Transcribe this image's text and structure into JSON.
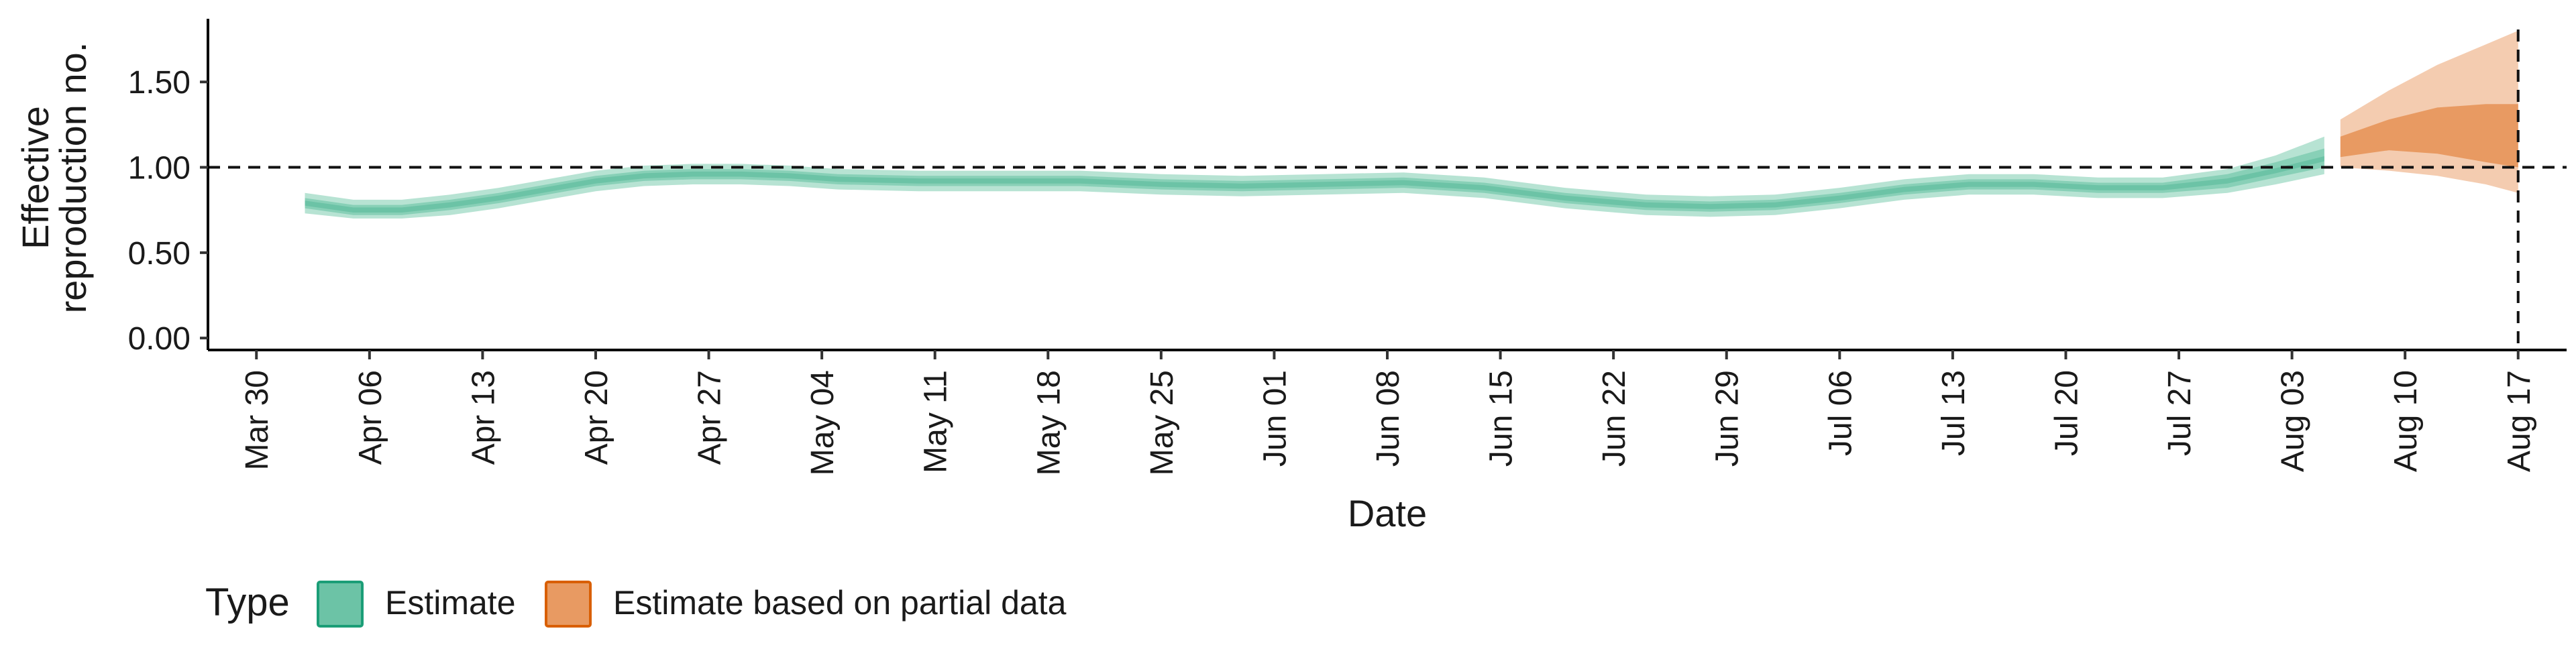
{
  "chart_data": {
    "type": "area",
    "title": "",
    "xlabel": "Date",
    "ylabel": [
      "Effective",
      "reproduction no."
    ],
    "x_domain": [
      "2020-03-27",
      "2020-08-20"
    ],
    "ylim": [
      -0.07,
      1.87
    ],
    "y_ticks": [
      {
        "value": 0.0,
        "label": "0.00"
      },
      {
        "value": 0.5,
        "label": "0.50"
      },
      {
        "value": 1.0,
        "label": "1.00"
      },
      {
        "value": 1.5,
        "label": "1.50"
      }
    ],
    "x_ticks": [
      {
        "date": "2020-03-30",
        "label": "Mar 30"
      },
      {
        "date": "2020-04-06",
        "label": "Apr 06"
      },
      {
        "date": "2020-04-13",
        "label": "Apr 13"
      },
      {
        "date": "2020-04-20",
        "label": "Apr 20"
      },
      {
        "date": "2020-04-27",
        "label": "Apr 27"
      },
      {
        "date": "2020-05-04",
        "label": "May 04"
      },
      {
        "date": "2020-05-11",
        "label": "May 11"
      },
      {
        "date": "2020-05-18",
        "label": "May 18"
      },
      {
        "date": "2020-05-25",
        "label": "May 25"
      },
      {
        "date": "2020-06-01",
        "label": "Jun 01"
      },
      {
        "date": "2020-06-08",
        "label": "Jun 08"
      },
      {
        "date": "2020-06-15",
        "label": "Jun 15"
      },
      {
        "date": "2020-06-22",
        "label": "Jun 22"
      },
      {
        "date": "2020-06-29",
        "label": "Jun 29"
      },
      {
        "date": "2020-07-06",
        "label": "Jul 06"
      },
      {
        "date": "2020-07-13",
        "label": "Jul 13"
      },
      {
        "date": "2020-07-20",
        "label": "Jul 20"
      },
      {
        "date": "2020-07-27",
        "label": "Jul 27"
      },
      {
        "date": "2020-08-03",
        "label": "Aug 03"
      },
      {
        "date": "2020-08-10",
        "label": "Aug 10"
      },
      {
        "date": "2020-08-17",
        "label": "Aug 17"
      }
    ],
    "reference_lines": {
      "horizontal_y": 1.0,
      "vertical_date": "2020-08-17"
    },
    "grid": false,
    "legend": {
      "position": "bottom-left",
      "title": "Type",
      "entries": [
        {
          "label": "Estimate",
          "fill": "#6cc3a6",
          "border": "#1b9e77"
        },
        {
          "label": "Estimate based on partial data",
          "fill": "#e89a62",
          "border": "#d95f02"
        }
      ]
    },
    "series": [
      {
        "name": "Estimate",
        "colors": {
          "outer": "#b7e3d3",
          "mid": "#88d0b7",
          "inner": "#6cc3a6"
        },
        "x": [
          "2020-04-02",
          "2020-04-05",
          "2020-04-08",
          "2020-04-11",
          "2020-04-14",
          "2020-04-17",
          "2020-04-20",
          "2020-04-23",
          "2020-04-26",
          "2020-04-29",
          "2020-05-02",
          "2020-05-05",
          "2020-05-10",
          "2020-05-15",
          "2020-05-20",
          "2020-05-25",
          "2020-05-30",
          "2020-06-04",
          "2020-06-09",
          "2020-06-14",
          "2020-06-19",
          "2020-06-24",
          "2020-06-28",
          "2020-07-02",
          "2020-07-06",
          "2020-07-10",
          "2020-07-14",
          "2020-07-18",
          "2020-07-22",
          "2020-07-26",
          "2020-07-30",
          "2020-08-02",
          "2020-08-05"
        ],
        "median": [
          0.79,
          0.75,
          0.75,
          0.78,
          0.82,
          0.87,
          0.92,
          0.95,
          0.96,
          0.96,
          0.95,
          0.93,
          0.92,
          0.92,
          0.92,
          0.9,
          0.89,
          0.9,
          0.91,
          0.88,
          0.82,
          0.78,
          0.77,
          0.78,
          0.82,
          0.87,
          0.9,
          0.9,
          0.88,
          0.88,
          0.92,
          0.98,
          1.05
        ],
        "lower_50": [
          0.76,
          0.72,
          0.72,
          0.75,
          0.79,
          0.84,
          0.89,
          0.92,
          0.93,
          0.93,
          0.92,
          0.9,
          0.89,
          0.89,
          0.89,
          0.87,
          0.86,
          0.87,
          0.88,
          0.85,
          0.79,
          0.75,
          0.74,
          0.75,
          0.79,
          0.84,
          0.87,
          0.87,
          0.85,
          0.85,
          0.88,
          0.94,
          1.0
        ],
        "upper_50": [
          0.82,
          0.78,
          0.78,
          0.81,
          0.85,
          0.9,
          0.95,
          0.98,
          0.99,
          0.99,
          0.98,
          0.96,
          0.95,
          0.95,
          0.95,
          0.93,
          0.92,
          0.93,
          0.94,
          0.91,
          0.85,
          0.81,
          0.8,
          0.81,
          0.85,
          0.9,
          0.93,
          0.93,
          0.91,
          0.91,
          0.96,
          1.03,
          1.11
        ],
        "lower_90": [
          0.73,
          0.7,
          0.7,
          0.72,
          0.76,
          0.81,
          0.86,
          0.89,
          0.9,
          0.9,
          0.89,
          0.87,
          0.86,
          0.86,
          0.86,
          0.84,
          0.83,
          0.84,
          0.85,
          0.82,
          0.76,
          0.72,
          0.71,
          0.72,
          0.76,
          0.81,
          0.84,
          0.84,
          0.82,
          0.82,
          0.85,
          0.9,
          0.96
        ],
        "upper_90": [
          0.85,
          0.81,
          0.81,
          0.84,
          0.88,
          0.93,
          0.98,
          1.01,
          1.02,
          1.02,
          1.01,
          0.99,
          0.98,
          0.98,
          0.98,
          0.96,
          0.95,
          0.96,
          0.97,
          0.94,
          0.88,
          0.84,
          0.83,
          0.84,
          0.88,
          0.93,
          0.96,
          0.96,
          0.94,
          0.94,
          0.99,
          1.07,
          1.18
        ]
      },
      {
        "name": "Estimate based on partial data",
        "colors": {
          "outer": "#f4ccb0",
          "inner": "#e89a62"
        },
        "x": [
          "2020-08-06",
          "2020-08-09",
          "2020-08-12",
          "2020-08-15",
          "2020-08-17"
        ],
        "median": [
          1.12,
          1.2,
          1.25,
          1.22,
          1.2
        ],
        "lower_50": [
          1.06,
          1.1,
          1.08,
          1.03,
          1.0
        ],
        "upper_50": [
          1.18,
          1.28,
          1.35,
          1.37,
          1.37
        ],
        "lower_90": [
          1.0,
          0.98,
          0.95,
          0.9,
          0.85
        ],
        "upper_90": [
          1.28,
          1.45,
          1.6,
          1.72,
          1.8
        ]
      }
    ]
  }
}
